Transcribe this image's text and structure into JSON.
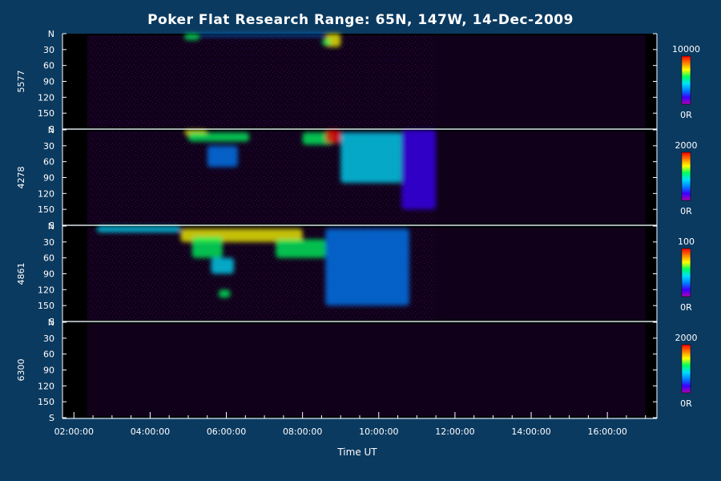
{
  "page": {
    "title": "Poker Flat Research Range: 65N, 147W, 14-Dec-2009",
    "background": "#0b3a60",
    "plot_background": "#000000",
    "axis_color": "#ffffff"
  },
  "chart_data": {
    "type": "heatmap",
    "title": "Poker Flat Research Range: 65N, 147W, 14-Dec-2009",
    "xlabel": "Time UT",
    "x_unit": "hours UT",
    "xlim": [
      1.7,
      17.3
    ],
    "x_ticks": [
      {
        "value": 2,
        "label": "02:00:00"
      },
      {
        "value": 4,
        "label": "04:00:00"
      },
      {
        "value": 6,
        "label": "06:00:00"
      },
      {
        "value": 8,
        "label": "08:00:00"
      },
      {
        "value": 10,
        "label": "10:00:00"
      },
      {
        "value": 12,
        "label": "12:00:00"
      },
      {
        "value": 14,
        "label": "14:00:00"
      },
      {
        "value": 16,
        "label": "16:00:00"
      }
    ],
    "y_unit": "scan angle (degrees from N)",
    "ylim": [
      0,
      180
    ],
    "y_ticks": [
      {
        "value": 0,
        "label": "N"
      },
      {
        "value": 30,
        "label": "30"
      },
      {
        "value": 60,
        "label": "60"
      },
      {
        "value": 90,
        "label": "90"
      },
      {
        "value": 120,
        "label": "120"
      },
      {
        "value": 150,
        "label": "150"
      },
      {
        "value": 180,
        "label": "S"
      }
    ],
    "colorbar_palette": [
      "#b000b0",
      "#3a00ff",
      "#0080ff",
      "#00e0ff",
      "#00ff60",
      "#ffff00",
      "#ff8000",
      "#ff0000"
    ],
    "panels": [
      {
        "wavelength": "5577",
        "cbar_max": "10000",
        "cbar_min": "0R",
        "data_start": 2.35,
        "data_end": 17.0,
        "features": [
          {
            "t0": 4.9,
            "t1": 5.3,
            "a0": 0,
            "a1": 12,
            "level": 0.55
          },
          {
            "t0": 5.3,
            "t1": 8.6,
            "a0": 0,
            "a1": 5,
            "level": 0.3
          },
          {
            "t0": 8.6,
            "t1": 9.0,
            "a0": 0,
            "a1": 25,
            "level": 0.75
          },
          {
            "t0": 8.5,
            "t1": 8.75,
            "a0": 10,
            "a1": 22,
            "level": 0.6
          }
        ]
      },
      {
        "wavelength": "4278",
        "cbar_max": "2000",
        "cbar_min": "0R",
        "data_start": 2.35,
        "data_end": 17.0,
        "features": [
          {
            "t0": 4.9,
            "t1": 5.5,
            "a0": 0,
            "a1": 10,
            "level": 0.75
          },
          {
            "t0": 5.0,
            "t1": 6.6,
            "a0": 5,
            "a1": 22,
            "level": 0.6
          },
          {
            "t0": 5.5,
            "t1": 6.3,
            "a0": 30,
            "a1": 70,
            "level": 0.35
          },
          {
            "t0": 8.0,
            "t1": 8.8,
            "a0": 5,
            "a1": 28,
            "level": 0.55
          },
          {
            "t0": 8.6,
            "t1": 9.0,
            "a0": 0,
            "a1": 25,
            "level": 0.95
          },
          {
            "t0": 9.0,
            "t1": 10.6,
            "a0": 5,
            "a1": 100,
            "level": 0.45
          },
          {
            "t0": 10.6,
            "t1": 11.5,
            "a0": 0,
            "a1": 150,
            "level": 0.15
          }
        ]
      },
      {
        "wavelength": "4861",
        "cbar_max": "100",
        "cbar_min": "0R",
        "data_start": 2.35,
        "data_end": 17.0,
        "features": [
          {
            "t0": 2.6,
            "t1": 4.8,
            "a0": 0,
            "a1": 12,
            "level": 0.4
          },
          {
            "t0": 4.8,
            "t1": 8.0,
            "a0": 5,
            "a1": 30,
            "level": 0.7
          },
          {
            "t0": 5.1,
            "t1": 5.9,
            "a0": 20,
            "a1": 60,
            "level": 0.55
          },
          {
            "t0": 5.6,
            "t1": 6.2,
            "a0": 60,
            "a1": 90,
            "level": 0.4
          },
          {
            "t0": 5.8,
            "t1": 6.1,
            "a0": 120,
            "a1": 135,
            "level": 0.6
          },
          {
            "t0": 7.3,
            "t1": 8.6,
            "a0": 25,
            "a1": 60,
            "level": 0.5
          },
          {
            "t0": 8.6,
            "t1": 10.8,
            "a0": 5,
            "a1": 150,
            "level": 0.3
          }
        ]
      },
      {
        "wavelength": "6300",
        "cbar_max": "2000",
        "cbar_min": "0R",
        "data_start": 2.35,
        "data_end": 17.0,
        "features": []
      }
    ]
  }
}
